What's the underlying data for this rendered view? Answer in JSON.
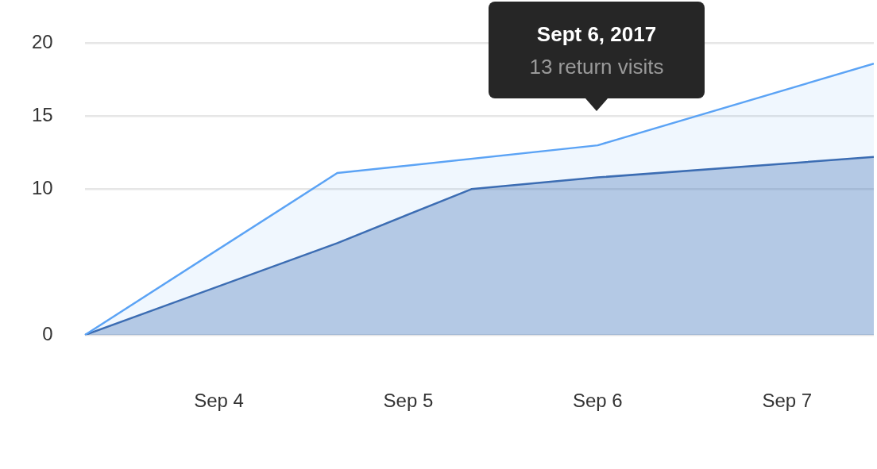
{
  "chart_data": {
    "type": "area",
    "x": [
      "2017-09-03T07:00",
      "2017-09-04T15:00",
      "2017-09-05T08:00",
      "2017-09-06T00:00",
      "2017-09-07T11:00"
    ],
    "series": [
      {
        "color": "#5ba3f5",
        "values": [
          0,
          11.1,
          null,
          13,
          18.6
        ]
      },
      {
        "color": "#3a68ad",
        "values": [
          0,
          6.3,
          10,
          10.8,
          12.2
        ]
      }
    ],
    "xlim": [
      "2017-09-03T07:00",
      "2017-09-07T11:00"
    ],
    "xticks": [
      {
        "value": "2017-09-04",
        "label": "Sep 4"
      },
      {
        "value": "2017-09-05",
        "label": "Sep 5"
      },
      {
        "value": "2017-09-06",
        "label": "Sep 6"
      },
      {
        "value": "2017-09-07",
        "label": "Sep 7"
      }
    ],
    "ylim": [
      0,
      20
    ],
    "yticks": [
      0,
      10,
      15,
      20
    ],
    "grid": "y",
    "legend": false,
    "annotations": [
      "Sept 6, 2017",
      "13 return visits"
    ]
  }
}
